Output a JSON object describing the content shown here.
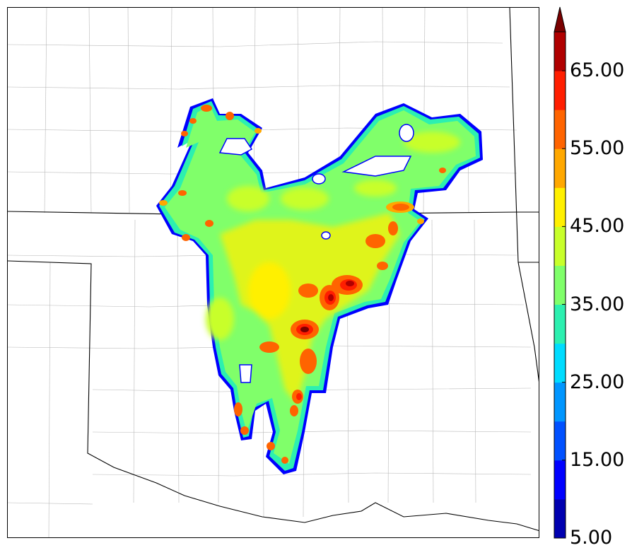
{
  "colorbar": {
    "tick_labels": [
      "5.00",
      "15.00",
      "25.00",
      "35.00",
      "45.00",
      "55.00",
      "65.00"
    ],
    "extend": "max",
    "colors": [
      "#0000b0",
      "#0000ff",
      "#0050ff",
      "#0096ff",
      "#00dcff",
      "#2cf0b0",
      "#80ff6a",
      "#c8ff2a",
      "#fff000",
      "#ffa800",
      "#ff6400",
      "#ff1e00",
      "#b00000",
      "#7a0000"
    ]
  },
  "map": {
    "background": "#ffffff",
    "boundary_color": "#000000",
    "county_color": "#a0a0a0"
  }
}
